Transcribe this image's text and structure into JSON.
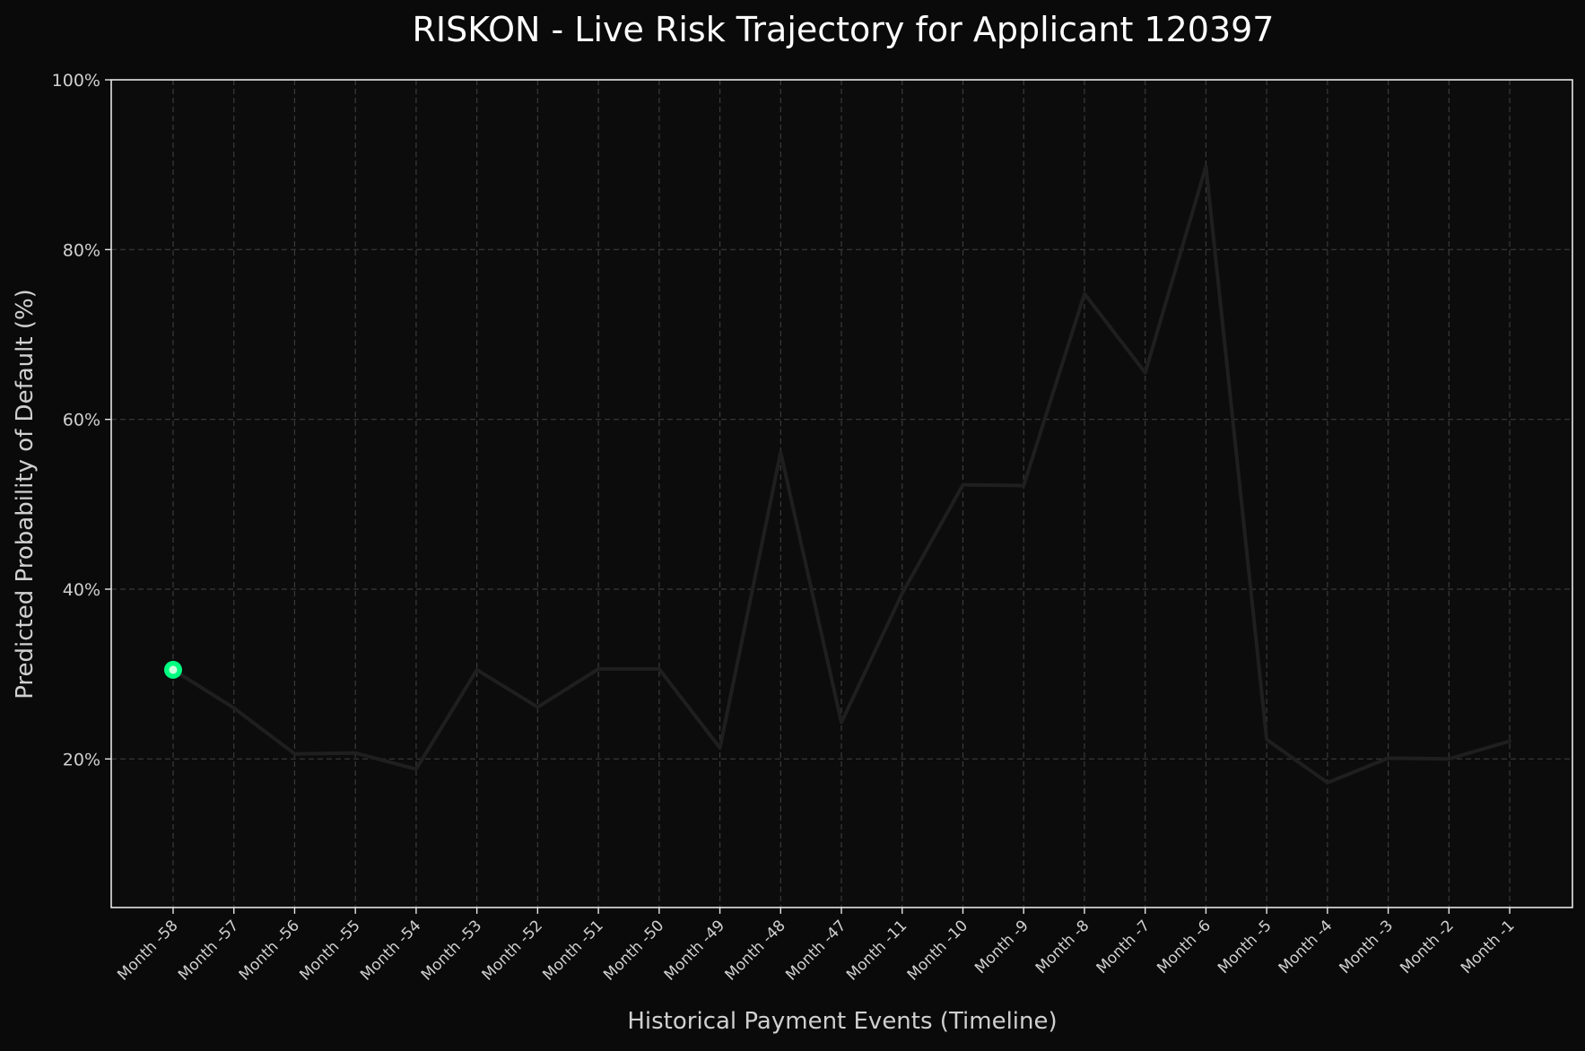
{
  "chart_data": {
    "type": "line",
    "title": "RISKON - Live Risk Trajectory for Applicant 120397",
    "xlabel": "Historical Payment Events (Timeline)",
    "ylabel": "Predicted Probability of Default (%)",
    "ylim": [
      2.5,
      100
    ],
    "yticks": [
      20,
      40,
      60,
      80,
      100
    ],
    "ytick_labels": [
      "20%",
      "40%",
      "60%",
      "80%",
      "100%"
    ],
    "grid": true,
    "categories": [
      "Month -58",
      "Month -57",
      "Month -56",
      "Month -55",
      "Month -54",
      "Month -53",
      "Month -52",
      "Month -51",
      "Month -50",
      "Month -49",
      "Month -48",
      "Month -47",
      "Month -11",
      "Month -10",
      "Month -9",
      "Month -8",
      "Month -7",
      "Month -6",
      "Month -5",
      "Month -4",
      "Month -3",
      "Month -2",
      "Month -1"
    ],
    "series": [
      {
        "values": [
          30.5,
          26.0,
          20.6,
          20.7,
          18.8,
          30.5,
          26.1,
          30.6,
          30.6,
          21.3,
          56.1,
          24.3,
          39.5,
          52.3,
          52.2,
          74.8,
          65.5,
          89.8,
          22.3,
          17.2,
          20.1,
          20.0,
          22.1
        ]
      }
    ],
    "highlight_index": 0,
    "colors": {
      "background": "#0a0a0a",
      "plot_background": "#0c0c0c",
      "axes": "#e6e6e6",
      "grid": "#3a3a3a",
      "line": "#1f1f1f",
      "highlight_outer": "#00ff80",
      "highlight_inner": "#ccffe0",
      "title": "#ffffff",
      "label": "#d0d0d0",
      "tick": "#d0d0d0"
    }
  }
}
